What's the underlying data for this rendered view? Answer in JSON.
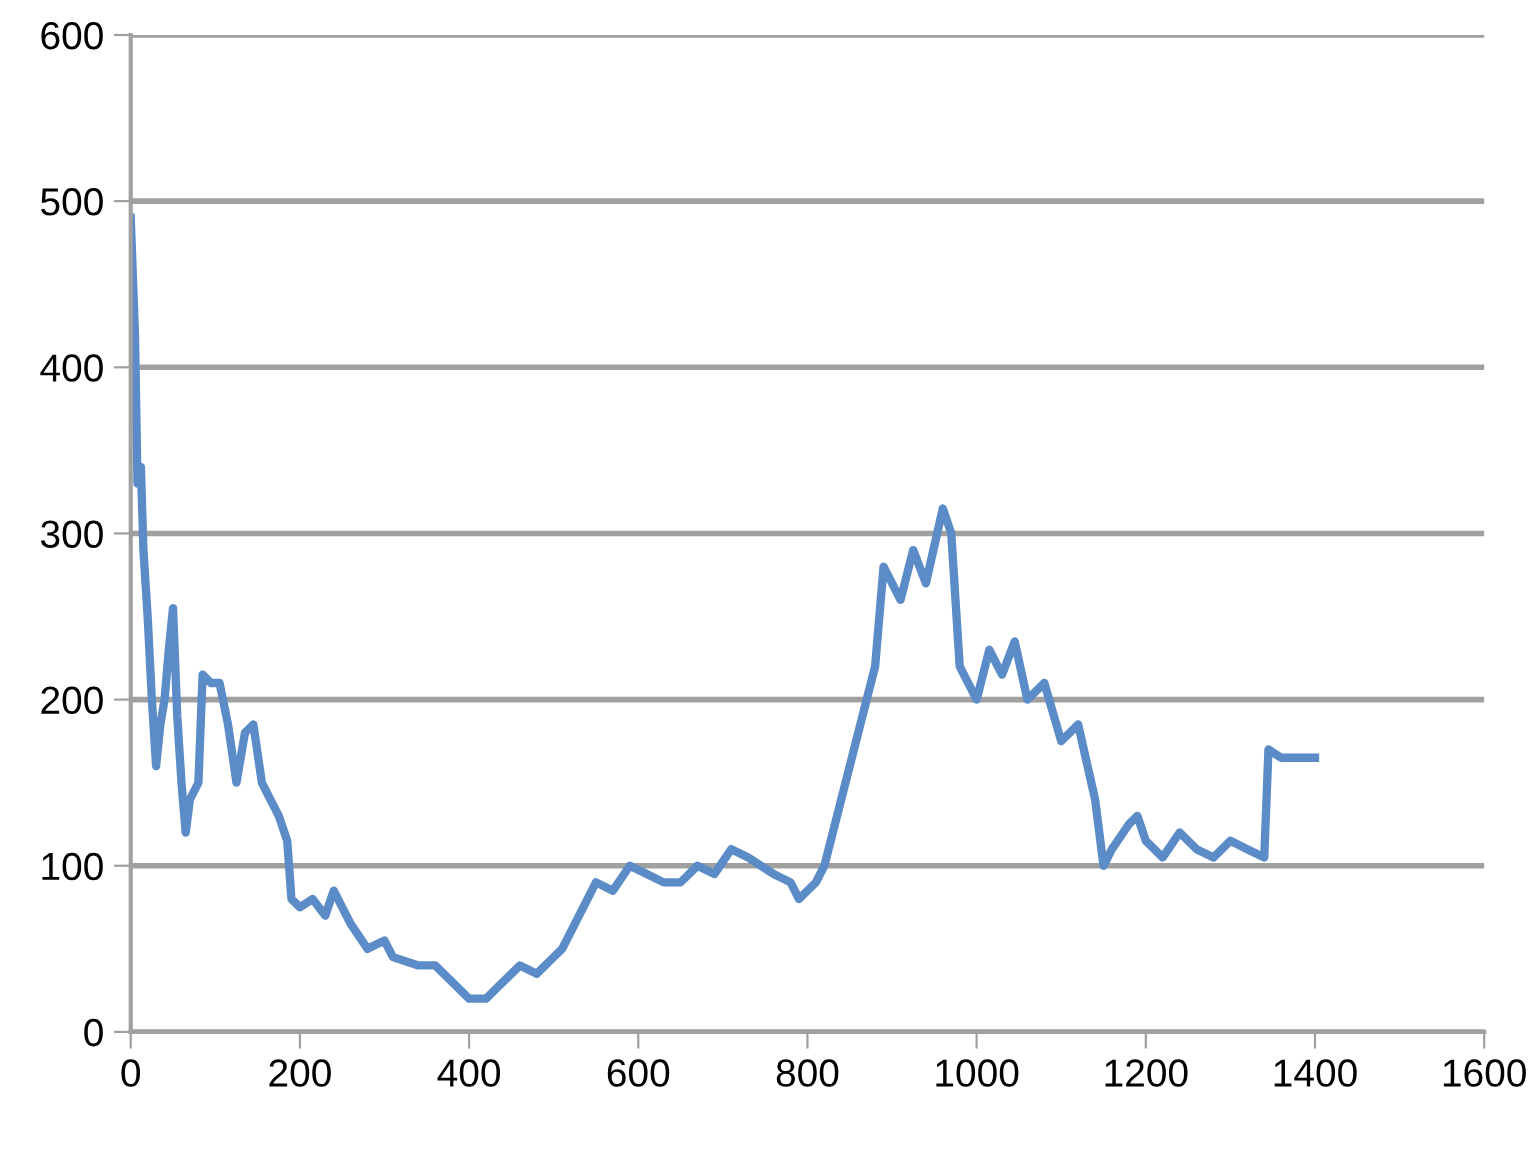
{
  "chart_data": {
    "type": "line",
    "xlim": [
      0,
      1600
    ],
    "xticks": [
      0,
      200,
      400,
      600,
      800,
      1000,
      1200,
      1400,
      1600
    ],
    "ylim": [
      0,
      600
    ],
    "yticks": [
      0,
      100,
      200,
      300,
      400,
      500,
      600
    ],
    "grid": "y",
    "marker": "none",
    "line_style": "solid",
    "series": [
      {
        "color": "#5b8cc8",
        "x": [
          0,
          5,
          8,
          12,
          15,
          20,
          25,
          30,
          35,
          40,
          45,
          50,
          55,
          60,
          65,
          70,
          80,
          85,
          95,
          105,
          115,
          125,
          135,
          145,
          155,
          165,
          175,
          185,
          190,
          200,
          215,
          230,
          240,
          260,
          280,
          300,
          310,
          340,
          360,
          380,
          400,
          420,
          440,
          460,
          480,
          500,
          510,
          530,
          550,
          570,
          590,
          610,
          630,
          650,
          670,
          690,
          710,
          730,
          760,
          780,
          790,
          810,
          820,
          840,
          860,
          880,
          890,
          910,
          925,
          940,
          960,
          970,
          980,
          1000,
          1015,
          1030,
          1045,
          1060,
          1080,
          1100,
          1120,
          1140,
          1150,
          1160,
          1180,
          1190,
          1200,
          1220,
          1240,
          1260,
          1280,
          1300,
          1320,
          1340,
          1345,
          1360,
          1400
        ],
        "values": [
          490,
          420,
          330,
          340,
          290,
          250,
          200,
          160,
          185,
          200,
          230,
          255,
          190,
          150,
          120,
          140,
          150,
          215,
          210,
          210,
          185,
          150,
          180,
          185,
          150,
          140,
          130,
          115,
          80,
          75,
          80,
          70,
          85,
          65,
          50,
          55,
          45,
          40,
          40,
          30,
          20,
          20,
          30,
          40,
          35,
          45,
          50,
          70,
          90,
          85,
          100,
          95,
          90,
          90,
          100,
          95,
          110,
          105,
          95,
          90,
          80,
          90,
          100,
          140,
          180,
          220,
          280,
          260,
          290,
          270,
          315,
          300,
          220,
          200,
          230,
          215,
          235,
          200,
          210,
          175,
          185,
          140,
          100,
          110,
          125,
          130,
          115,
          105,
          120,
          110,
          105,
          115,
          110,
          105,
          170,
          165,
          165
        ]
      }
    ]
  }
}
